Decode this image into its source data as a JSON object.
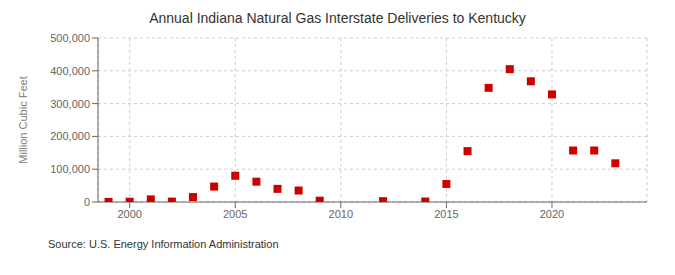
{
  "chart_data": {
    "type": "scatter",
    "title": "Annual Indiana Natural Gas Interstate Deliveries to Kentucky",
    "y_label": "Million Cubic Feet",
    "annotations": [
      "Source: U.S. Energy Information Administration"
    ],
    "x": [
      1999,
      2000,
      2001,
      2002,
      2003,
      2004,
      2005,
      2006,
      2007,
      2008,
      2009,
      2012,
      2014,
      2015,
      2016,
      2017,
      2018,
      2019,
      2020,
      2021,
      2022,
      2023
    ],
    "values": [
      300,
      800,
      8000,
      1200,
      15000,
      47000,
      80000,
      62000,
      40000,
      35000,
      4000,
      2500,
      1500,
      55000,
      155000,
      348000,
      405000,
      368000,
      328000,
      157000,
      157000,
      118000
    ],
    "color": "#cc0000",
    "marker": "square",
    "xlim": [
      1998.5,
      2024.5
    ],
    "xticks": [
      2000,
      2005,
      2010,
      2015,
      2020
    ],
    "ylim": [
      0,
      500000
    ],
    "yticks": [
      0,
      {
        "value": 100000,
        "label": "100,000"
      },
      {
        "value": 200000,
        "label": "200,000"
      },
      {
        "value": 300000,
        "label": "300,000"
      },
      {
        "value": 400000,
        "label": "400,000"
      },
      {
        "value": 500000,
        "label": "500,000"
      }
    ],
    "grid": true
  }
}
